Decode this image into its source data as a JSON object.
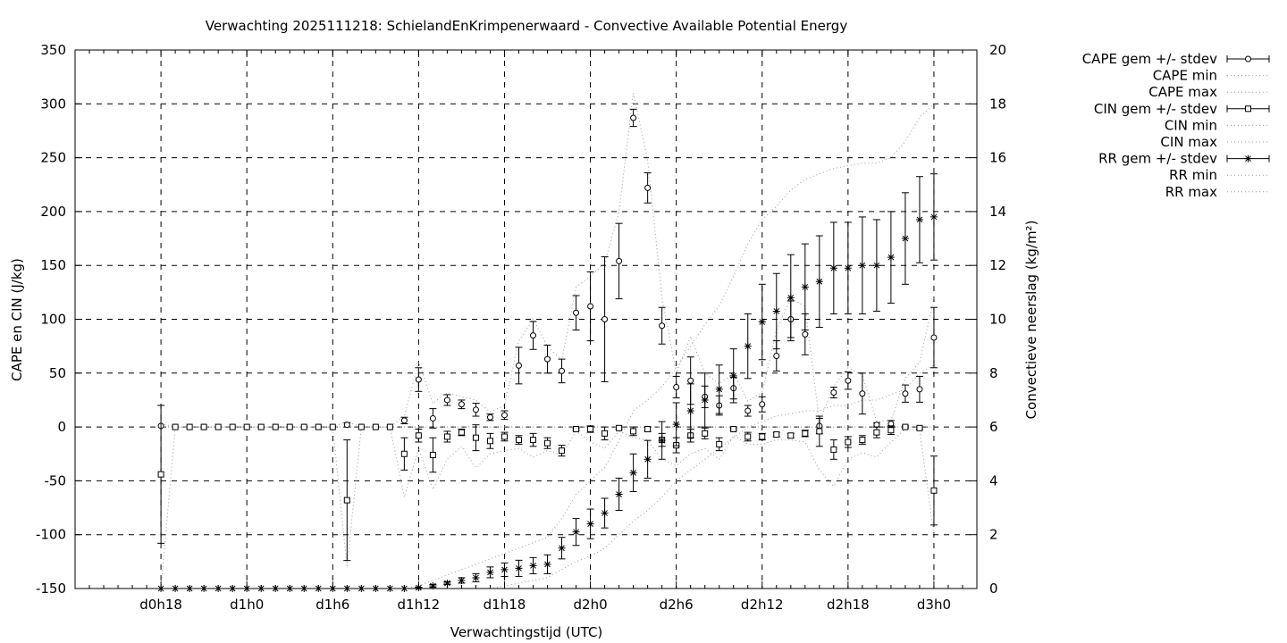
{
  "chart_data": {
    "type": "line",
    "title": "Verwachting 2025111218: SchielandEnKrimpenerwaard - Convective Available Potential Energy",
    "xlabel": "Verwachtingstijd (UTC)",
    "ylabel": "CAPE en CIN (J/kg)",
    "y2label": "Convectieve neerslag (kg/m²)",
    "ylim": [
      -150,
      350
    ],
    "y2lim": [
      0,
      20
    ],
    "xlim": [
      -6,
      57
    ],
    "grid": true,
    "legend_position": "outside-right",
    "x_ticks": [
      {
        "x": 0,
        "label": "d0h18"
      },
      {
        "x": 6,
        "label": "d1h0"
      },
      {
        "x": 12,
        "label": "d1h6"
      },
      {
        "x": 18,
        "label": "d1h12"
      },
      {
        "x": 24,
        "label": "d1h18"
      },
      {
        "x": 30,
        "label": "d2h0"
      },
      {
        "x": 36,
        "label": "d2h6"
      },
      {
        "x": 42,
        "label": "d2h12"
      },
      {
        "x": 48,
        "label": "d2h18"
      },
      {
        "x": 54,
        "label": "d3h0"
      }
    ],
    "y_ticks": [
      -150,
      -100,
      -50,
      0,
      50,
      100,
      150,
      200,
      250,
      300,
      350
    ],
    "y2_ticks": [
      0,
      2,
      4,
      6,
      8,
      10,
      12,
      14,
      16,
      18,
      20
    ],
    "legend": [
      {
        "label": "CAPE gem +/- stdev",
        "style": "errorbar",
        "marker": "circle"
      },
      {
        "label": "CAPE min",
        "style": "dotted"
      },
      {
        "label": "CAPE max",
        "style": "dotted"
      },
      {
        "label": "CIN gem +/- stdev",
        "style": "errorbar",
        "marker": "square"
      },
      {
        "label": "CIN min",
        "style": "dotted-dark"
      },
      {
        "label": "CIN max",
        "style": "dotted"
      },
      {
        "label": "RR gem +/- stdev",
        "style": "errorbar",
        "marker": "star"
      },
      {
        "label": "RR min",
        "style": "dotted"
      },
      {
        "label": "RR max",
        "style": "dotted"
      }
    ],
    "x": [
      0,
      1,
      2,
      3,
      4,
      5,
      6,
      7,
      8,
      9,
      10,
      11,
      12,
      13,
      14,
      15,
      16,
      17,
      18,
      19,
      20,
      21,
      22,
      23,
      24,
      25,
      26,
      27,
      28,
      29,
      30,
      31,
      32,
      33,
      34,
      35,
      36,
      37,
      38,
      39,
      40,
      41,
      42,
      43,
      44,
      45,
      46,
      47,
      48,
      49,
      50,
      51,
      52,
      53,
      54
    ],
    "series": [
      {
        "name": "CAPE",
        "marker": "circle",
        "axis": "left",
        "mean": [
          1,
          0,
          0,
          0,
          0,
          0,
          0,
          0,
          0,
          0,
          0,
          0,
          0,
          2,
          0,
          0,
          0,
          6,
          44,
          8,
          25,
          21,
          16,
          9,
          11,
          57,
          85,
          63,
          52,
          106,
          112,
          100,
          154,
          287,
          222,
          94,
          37,
          43,
          28,
          20,
          36,
          15,
          21,
          66,
          100,
          86,
          1,
          32,
          43,
          31,
          2,
          3,
          31,
          35,
          83
        ],
        "stdev": [
          0,
          0,
          0,
          0,
          0,
          0,
          0,
          0,
          0,
          0,
          0,
          0,
          0,
          2,
          0,
          0,
          0,
          3,
          11,
          9,
          5,
          4,
          6,
          3,
          4,
          17,
          13,
          13,
          11,
          16,
          32,
          58,
          35,
          8,
          14,
          17,
          10,
          22,
          10,
          9,
          10,
          5,
          7,
          14,
          17,
          19,
          7,
          5,
          8,
          19,
          2,
          3,
          8,
          12,
          28
        ],
        "min": [
          0,
          0,
          0,
          0,
          0,
          0,
          0,
          0,
          0,
          0,
          0,
          0,
          0,
          0,
          0,
          0,
          0,
          0,
          0,
          0,
          0,
          0,
          0,
          0,
          0,
          0,
          0,
          0,
          0,
          0,
          0,
          0,
          0,
          0,
          0,
          0,
          0,
          0,
          0,
          0,
          0,
          0,
          0,
          0,
          0,
          0,
          0,
          0,
          0,
          0,
          0,
          0,
          0,
          0,
          0
        ],
        "max": [
          3,
          0,
          0,
          0,
          0,
          0,
          0,
          0,
          0,
          0,
          0,
          0,
          0,
          5,
          0,
          0,
          0,
          10,
          60,
          22,
          32,
          28,
          25,
          14,
          20,
          80,
          100,
          75,
          62,
          130,
          140,
          152,
          200,
          310,
          248,
          120,
          50,
          84,
          50,
          40,
          50,
          24,
          32,
          90,
          120,
          112,
          5,
          38,
          55,
          48,
          5,
          6,
          45,
          60,
          120
        ]
      },
      {
        "name": "CIN",
        "marker": "square",
        "axis": "left",
        "mean": [
          -44,
          0,
          0,
          0,
          0,
          0,
          0,
          0,
          0,
          0,
          0,
          0,
          0,
          -68,
          0,
          0,
          0,
          -25,
          -8,
          -26,
          -9,
          -5,
          -10,
          -13,
          -9,
          -12,
          -12,
          -15,
          -22,
          -2,
          -2,
          -6,
          -1,
          -4,
          -2,
          -12,
          -17,
          -8,
          -6,
          -16,
          -2,
          -9,
          -9,
          -7,
          -8,
          -6,
          -4,
          -21,
          -14,
          -12,
          -5,
          -3,
          0,
          -1,
          -59
        ],
        "stdev": [
          64,
          0,
          0,
          0,
          0,
          0,
          0,
          0,
          0,
          0,
          0,
          0,
          0,
          56,
          0,
          0,
          0,
          15,
          6,
          16,
          5,
          3,
          12,
          7,
          4,
          4,
          6,
          5,
          5,
          1,
          3,
          6,
          1,
          4,
          2,
          6,
          7,
          6,
          5,
          6,
          1,
          4,
          3,
          2,
          2,
          3,
          14,
          9,
          5,
          4,
          5,
          4,
          1,
          1,
          32
        ],
        "min": [
          -150,
          0,
          0,
          0,
          0,
          0,
          0,
          0,
          0,
          0,
          0,
          0,
          0,
          -130,
          0,
          0,
          0,
          -65,
          -20,
          -58,
          -30,
          -18,
          -38,
          -25,
          -22,
          -20,
          -28,
          -22,
          -26,
          -4,
          -14,
          -20,
          -4,
          -10,
          -12,
          -30,
          -36,
          -25,
          -20,
          -30,
          -8,
          -16,
          -16,
          -12,
          -12,
          -14,
          -40,
          -55,
          -30,
          -24,
          -28,
          -14,
          -2,
          -3,
          -100
        ],
        "max": [
          0,
          0,
          0,
          0,
          0,
          0,
          0,
          0,
          0,
          0,
          0,
          0,
          0,
          0,
          0,
          0,
          0,
          0,
          0,
          0,
          0,
          0,
          0,
          0,
          0,
          0,
          0,
          0,
          0,
          0,
          0,
          0,
          0,
          0,
          0,
          0,
          0,
          0,
          0,
          0,
          0,
          0,
          0,
          0,
          0,
          0,
          0,
          0,
          0,
          0,
          0,
          0,
          0,
          0,
          0
        ]
      },
      {
        "name": "RR",
        "marker": "star",
        "axis": "right",
        "mean": [
          0,
          0,
          0,
          0,
          0,
          0,
          0,
          0,
          0,
          0,
          0,
          0,
          0,
          0,
          0,
          0,
          0,
          0,
          0.03,
          0.1,
          0.2,
          0.3,
          0.4,
          0.6,
          0.7,
          0.75,
          0.85,
          0.9,
          1.5,
          2.1,
          2.4,
          2.8,
          3.5,
          4.3,
          4.8,
          5.5,
          6.1,
          6.6,
          7.0,
          7.4,
          7.9,
          9.0,
          9.9,
          10.3,
          10.8,
          11.2,
          11.4,
          11.9,
          11.9,
          12.0,
          12.0,
          12.3,
          13.0,
          13.7,
          13.8
        ],
        "stdev": [
          0,
          0,
          0,
          0,
          0,
          0,
          0,
          0,
          0,
          0,
          0,
          0,
          0,
          0,
          0,
          0,
          0,
          0,
          0.02,
          0.05,
          0.05,
          0.1,
          0.15,
          0.2,
          0.25,
          0.3,
          0.3,
          0.35,
          0.4,
          0.5,
          0.55,
          0.55,
          0.6,
          0.7,
          0.7,
          0.7,
          0.8,
          1.0,
          1.0,
          0.9,
          1.0,
          1.2,
          1.4,
          1.4,
          1.6,
          1.6,
          1.7,
          1.7,
          1.7,
          1.8,
          1.7,
          1.7,
          1.7,
          1.6,
          1.6
        ],
        "min": [
          0,
          0,
          0,
          0,
          0,
          0,
          0,
          0,
          0,
          0,
          0,
          0,
          0,
          0,
          0,
          0,
          0,
          0,
          0,
          0,
          0,
          0,
          0,
          0,
          0.1,
          0.2,
          0.3,
          0.4,
          0.7,
          1.0,
          1.2,
          1.5,
          2.0,
          2.5,
          2.9,
          3.4,
          4.0,
          4.4,
          4.8,
          5.2,
          5.6,
          6.0,
          6.2,
          6.4,
          6.5,
          6.6,
          6.6,
          6.8,
          6.8,
          7.0,
          7.0,
          7.2,
          7.4,
          8.0,
          8.3
        ],
        "max": [
          0,
          0,
          0,
          0,
          0,
          0,
          0,
          0,
          0,
          0,
          0,
          0,
          0,
          0,
          0,
          0,
          0,
          0,
          0.1,
          0.3,
          0.5,
          0.7,
          0.9,
          1.1,
          1.3,
          1.5,
          1.7,
          1.9,
          2.6,
          3.5,
          4.0,
          4.5,
          5.5,
          6.6,
          7.0,
          7.5,
          8.2,
          9.0,
          9.8,
          10.5,
          11.6,
          12.8,
          13.7,
          14.2,
          14.8,
          15.2,
          15.4,
          15.6,
          15.7,
          15.8,
          15.8,
          16.0,
          16.6,
          17.5,
          18.0
        ]
      }
    ]
  }
}
